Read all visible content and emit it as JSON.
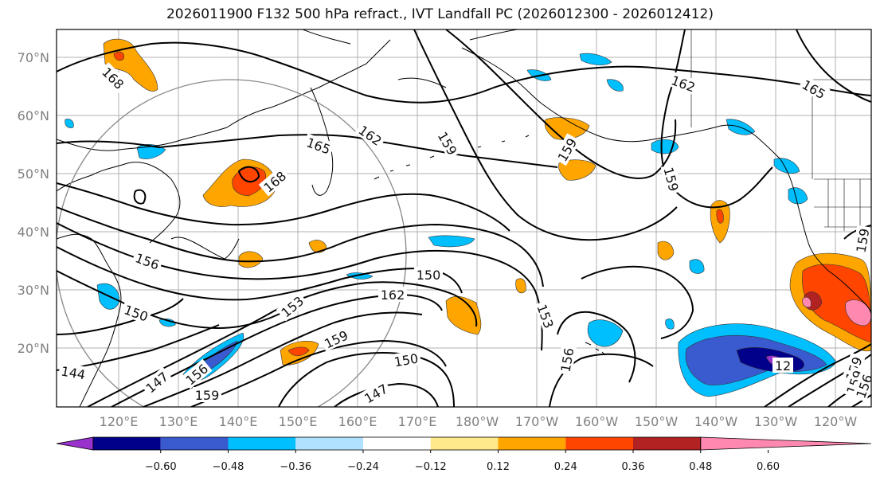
{
  "title": "2026011900 F132 500 hPa refract., IVT Landfall PC (2026012300 - 2026012412)",
  "map": {
    "lat_ticks": [
      "70°N",
      "60°N",
      "50°N",
      "40°N",
      "30°N",
      "20°N"
    ],
    "lon_ticks": [
      "120°E",
      "130°E",
      "140°E",
      "150°E",
      "160°E",
      "170°E",
      "180°W",
      "170°W",
      "160°W",
      "150°W",
      "140°W",
      "130°W",
      "120°W"
    ],
    "contour_labels": [
      "168",
      "168",
      "165",
      "162",
      "159",
      "162",
      "165",
      "159",
      "159",
      "159",
      "150",
      "162",
      "153",
      "159",
      "150",
      "147",
      "159",
      "156",
      "147",
      "144",
      "150",
      "156",
      "156",
      "153",
      "159",
      "159",
      "156",
      "12"
    ]
  },
  "colorbar": {
    "ticks": [
      "−0.60",
      "−0.48",
      "−0.36",
      "−0.24",
      "−0.12",
      "0.12",
      "0.24",
      "0.36",
      "0.48",
      "0.60"
    ],
    "colors": [
      "#9932cc",
      "#00008b",
      "#3a5bd0",
      "#00bfff",
      "#b0e2ff",
      "#ffffff",
      "#ffe98a",
      "#ffa500",
      "#ff4500",
      "#b22222",
      "#ff88b0"
    ]
  }
}
